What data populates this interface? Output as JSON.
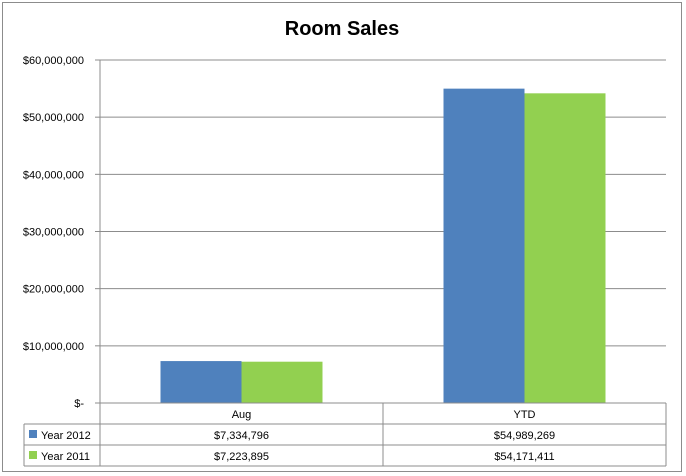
{
  "chart_data": {
    "type": "bar",
    "title": "Room Sales",
    "categories": [
      "Aug",
      "YTD"
    ],
    "series": [
      {
        "name": "Year 2012",
        "color": "#4f81bd",
        "values": [
          7334796,
          54989269
        ],
        "labels": [
          "$7,334,796",
          "$54,989,269"
        ]
      },
      {
        "name": "Year 2011",
        "color": "#92d050",
        "values": [
          7223895,
          54171411
        ],
        "labels": [
          "$7,223,895",
          "$54,171,411"
        ]
      }
    ],
    "ylim": [
      0,
      60000000
    ],
    "yticks": [
      0,
      10000000,
      20000000,
      30000000,
      40000000,
      50000000,
      60000000
    ],
    "ytick_labels": [
      "$-",
      "$10,000,000",
      "$20,000,000",
      "$30,000,000",
      "$40,000,000",
      "$50,000,000",
      "$60,000,000"
    ],
    "grid": true,
    "legend": "data-table",
    "xlabel": "",
    "ylabel": ""
  }
}
